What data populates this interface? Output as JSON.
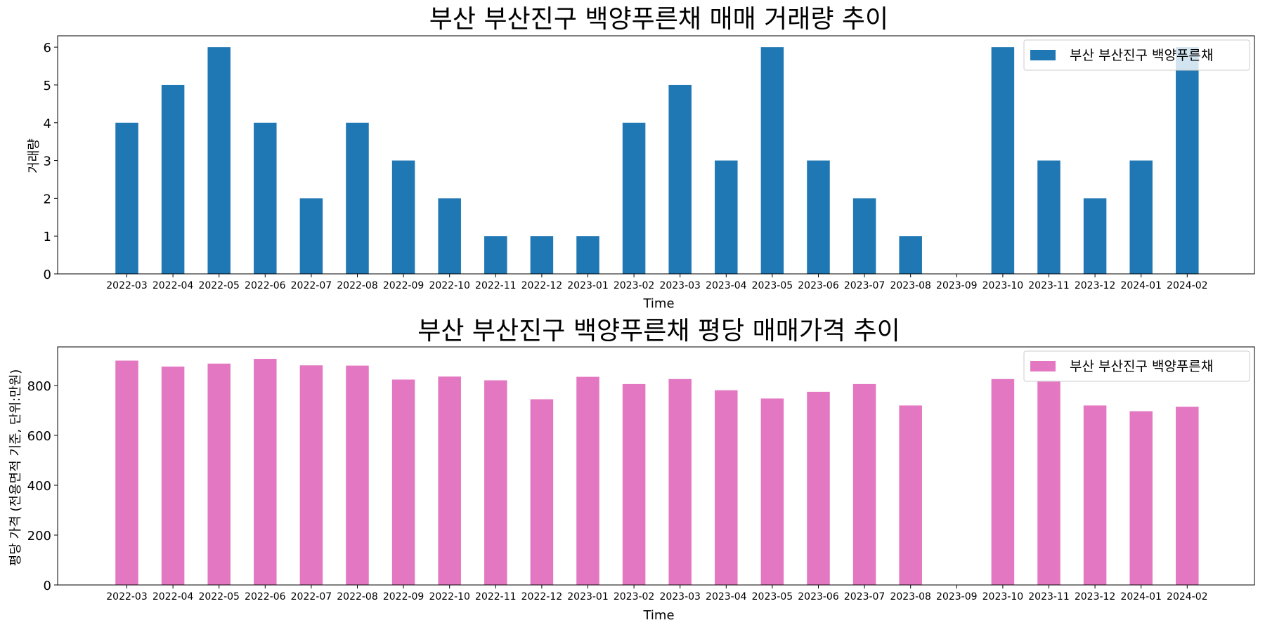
{
  "chart_data": [
    {
      "type": "bar",
      "title": "부산 부산진구 백양푸른채 매매 거래량 추이",
      "xlabel": "Time",
      "ylabel": "거래량",
      "categories": [
        "2022-03",
        "2022-04",
        "2022-05",
        "2022-06",
        "2022-07",
        "2022-08",
        "2022-09",
        "2022-10",
        "2022-11",
        "2022-12",
        "2023-01",
        "2023-02",
        "2023-03",
        "2023-04",
        "2023-05",
        "2023-06",
        "2023-07",
        "2023-08",
        "2023-09",
        "2023-10",
        "2023-11",
        "2023-12",
        "2024-01",
        "2024-02"
      ],
      "series": [
        {
          "name": "부산 부산진구 백양푸른채",
          "color": "#1f77b4",
          "values": [
            4,
            5,
            6,
            4,
            2,
            4,
            3,
            2,
            1,
            1,
            1,
            4,
            5,
            3,
            6,
            3,
            2,
            1,
            0,
            6,
            3,
            2,
            3,
            6
          ]
        }
      ],
      "ylim": [
        0,
        6.3
      ],
      "yticks": [
        0,
        1,
        2,
        3,
        4,
        5,
        6
      ],
      "grid": false,
      "legend": "top-right"
    },
    {
      "type": "bar",
      "title": "부산 부산진구 백양푸른채 평당 매매가격 추이",
      "xlabel": "Time",
      "ylabel": "평당 가격 (전용면적 기준, 단위:만원)",
      "categories": [
        "2022-03",
        "2022-04",
        "2022-05",
        "2022-06",
        "2022-07",
        "2022-08",
        "2022-09",
        "2022-10",
        "2022-11",
        "2022-12",
        "2023-01",
        "2023-02",
        "2023-03",
        "2023-04",
        "2023-05",
        "2023-06",
        "2023-07",
        "2023-08",
        "2023-09",
        "2023-10",
        "2023-11",
        "2023-12",
        "2024-01",
        "2024-02"
      ],
      "series": [
        {
          "name": "부산 부산진구 백양푸른채",
          "color": "#e377c2",
          "values": [
            900,
            876,
            888,
            907,
            881,
            880,
            824,
            836,
            821,
            745,
            835,
            806,
            826,
            781,
            748,
            775,
            806,
            720,
            0,
            826,
            820,
            720,
            697,
            715
          ]
        }
      ],
      "ylim": [
        0,
        955
      ],
      "yticks": [
        0,
        200,
        400,
        600,
        800
      ],
      "grid": false,
      "legend": "top-right"
    }
  ]
}
